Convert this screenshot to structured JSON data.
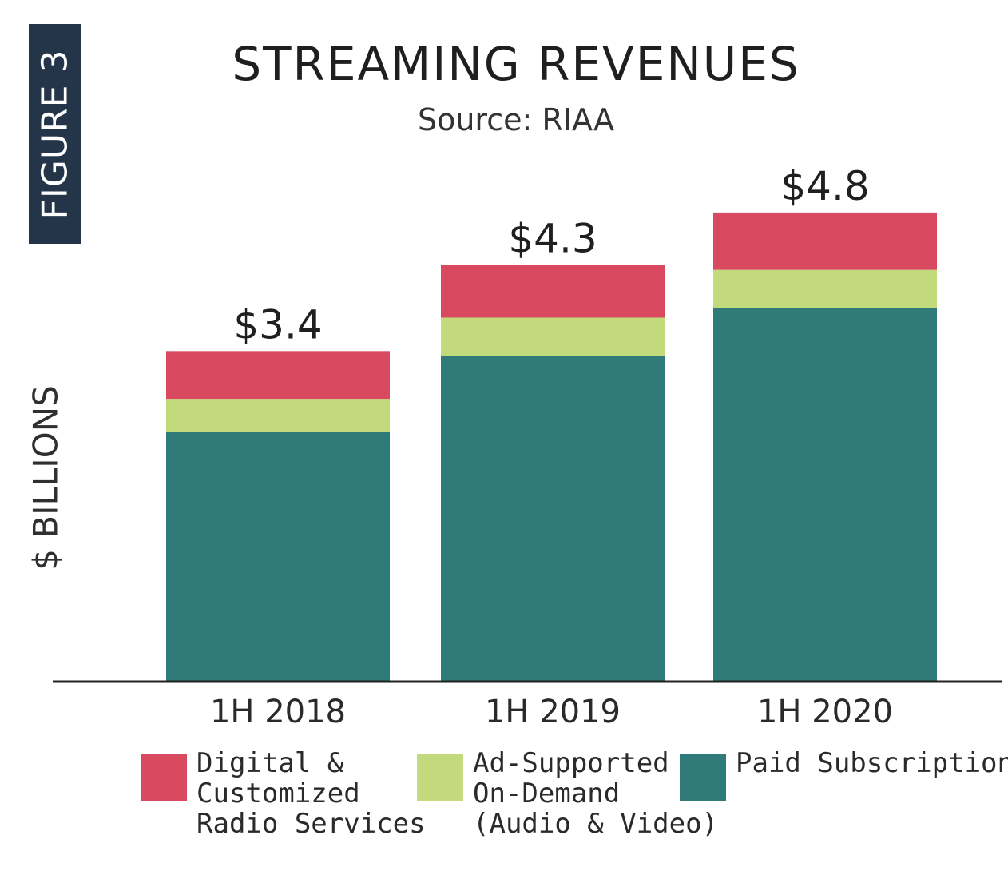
{
  "figure_tag": "FIGURE 3",
  "chart_data": {
    "type": "bar",
    "stacked": true,
    "title": "STREAMING REVENUES",
    "subtitle": "Source: RIAA",
    "ylabel": "$ BILLIONS",
    "xlabel": "",
    "categories": [
      "1H 2018",
      "1H 2019",
      "1H 2020"
    ],
    "totals_labels": [
      "$3.4",
      "$4.3",
      "$4.8"
    ],
    "ylim": [
      0,
      5.2
    ],
    "series": [
      {
        "name": "Paid Subscriptions",
        "values": [
          2.6,
          3.4,
          3.9
        ],
        "color": "#307b7a"
      },
      {
        "name": "Ad-Supported On-Demand (Audio & Video)",
        "values": [
          0.35,
          0.4,
          0.4
        ],
        "color": "#c2d97c"
      },
      {
        "name": "Digital & Customized Radio Services",
        "values": [
          0.5,
          0.55,
          0.6
        ],
        "color": "#d94a61"
      }
    ],
    "legend": [
      {
        "lines": [
          "Digital &",
          "Customized",
          "Radio Services"
        ],
        "color": "#d94a61"
      },
      {
        "lines": [
          "Ad-Supported",
          "On-Demand",
          "(Audio & Video)"
        ],
        "color": "#c2d97c"
      },
      {
        "lines": [
          "Paid Subscriptions"
        ],
        "color": "#307b7a"
      }
    ],
    "legend_placement": "bottom",
    "grid": false
  }
}
